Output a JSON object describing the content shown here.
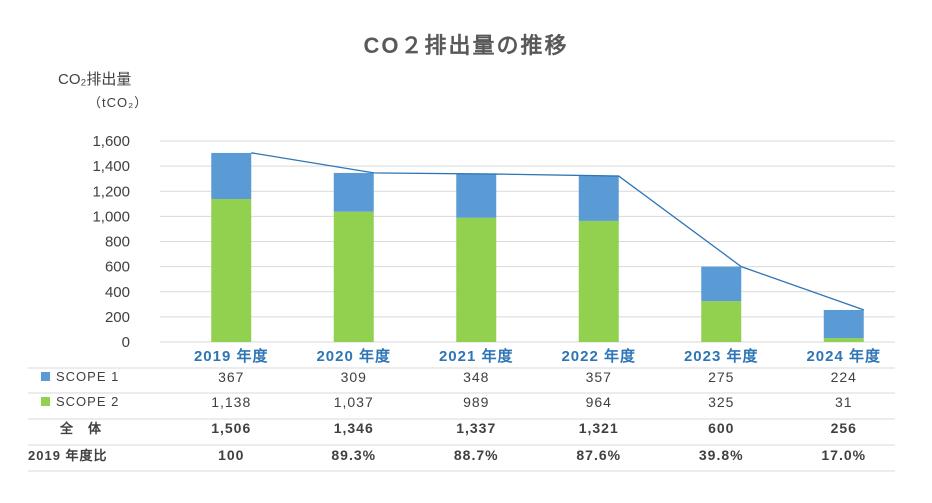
{
  "colors": {
    "scope1": "#5b9bd5",
    "scope2": "#92d050",
    "line": "#2e75b6",
    "category": "#2e75b6",
    "grid": "#d9d9d9"
  },
  "chart_data": {
    "type": "bar",
    "stacked": true,
    "title": "CO２排出量の推移",
    "ylabel": "CO₂排出量",
    "yunit": "（tCO₂）",
    "categories": [
      "2019 年度",
      "2020 年度",
      "2021 年度",
      "2022 年度",
      "2023 年度",
      "2024 年度"
    ],
    "ylim": [
      0,
      1600
    ],
    "yticks": [
      "0",
      "200",
      "400",
      "600",
      "800",
      "1,000",
      "1,200",
      "1,400",
      "1,600"
    ],
    "ytick_values": [
      0,
      200,
      400,
      600,
      800,
      1000,
      1200,
      1400,
      1600
    ],
    "grid": true,
    "series": [
      {
        "name": "SCOPE 2",
        "values": [
          1138,
          1037,
          989,
          964,
          325,
          31
        ]
      },
      {
        "name": "SCOPE 1",
        "values": [
          367,
          309,
          348,
          357,
          275,
          224
        ]
      }
    ],
    "total_line": [
      1506,
      1346,
      1337,
      1321,
      600,
      256
    ],
    "table": {
      "rows": [
        {
          "label": "SCOPE 1",
          "marker": "scope1",
          "cells": [
            "367",
            "309",
            "348",
            "357",
            "275",
            "224"
          ]
        },
        {
          "label": "SCOPE 2",
          "marker": "scope2",
          "cells": [
            "1,138",
            "1,037",
            "989",
            "964",
            "325",
            "31"
          ]
        },
        {
          "label": "全　体",
          "bold": true,
          "cells": [
            "1,506",
            "1,346",
            "1,337",
            "1,321",
            "600",
            "256"
          ]
        },
        {
          "label": "2019 年度比",
          "bold": true,
          "cells": [
            "100",
            "89.3%",
            "88.7%",
            "87.6%",
            "39.8%",
            "17.0%"
          ]
        }
      ]
    }
  }
}
